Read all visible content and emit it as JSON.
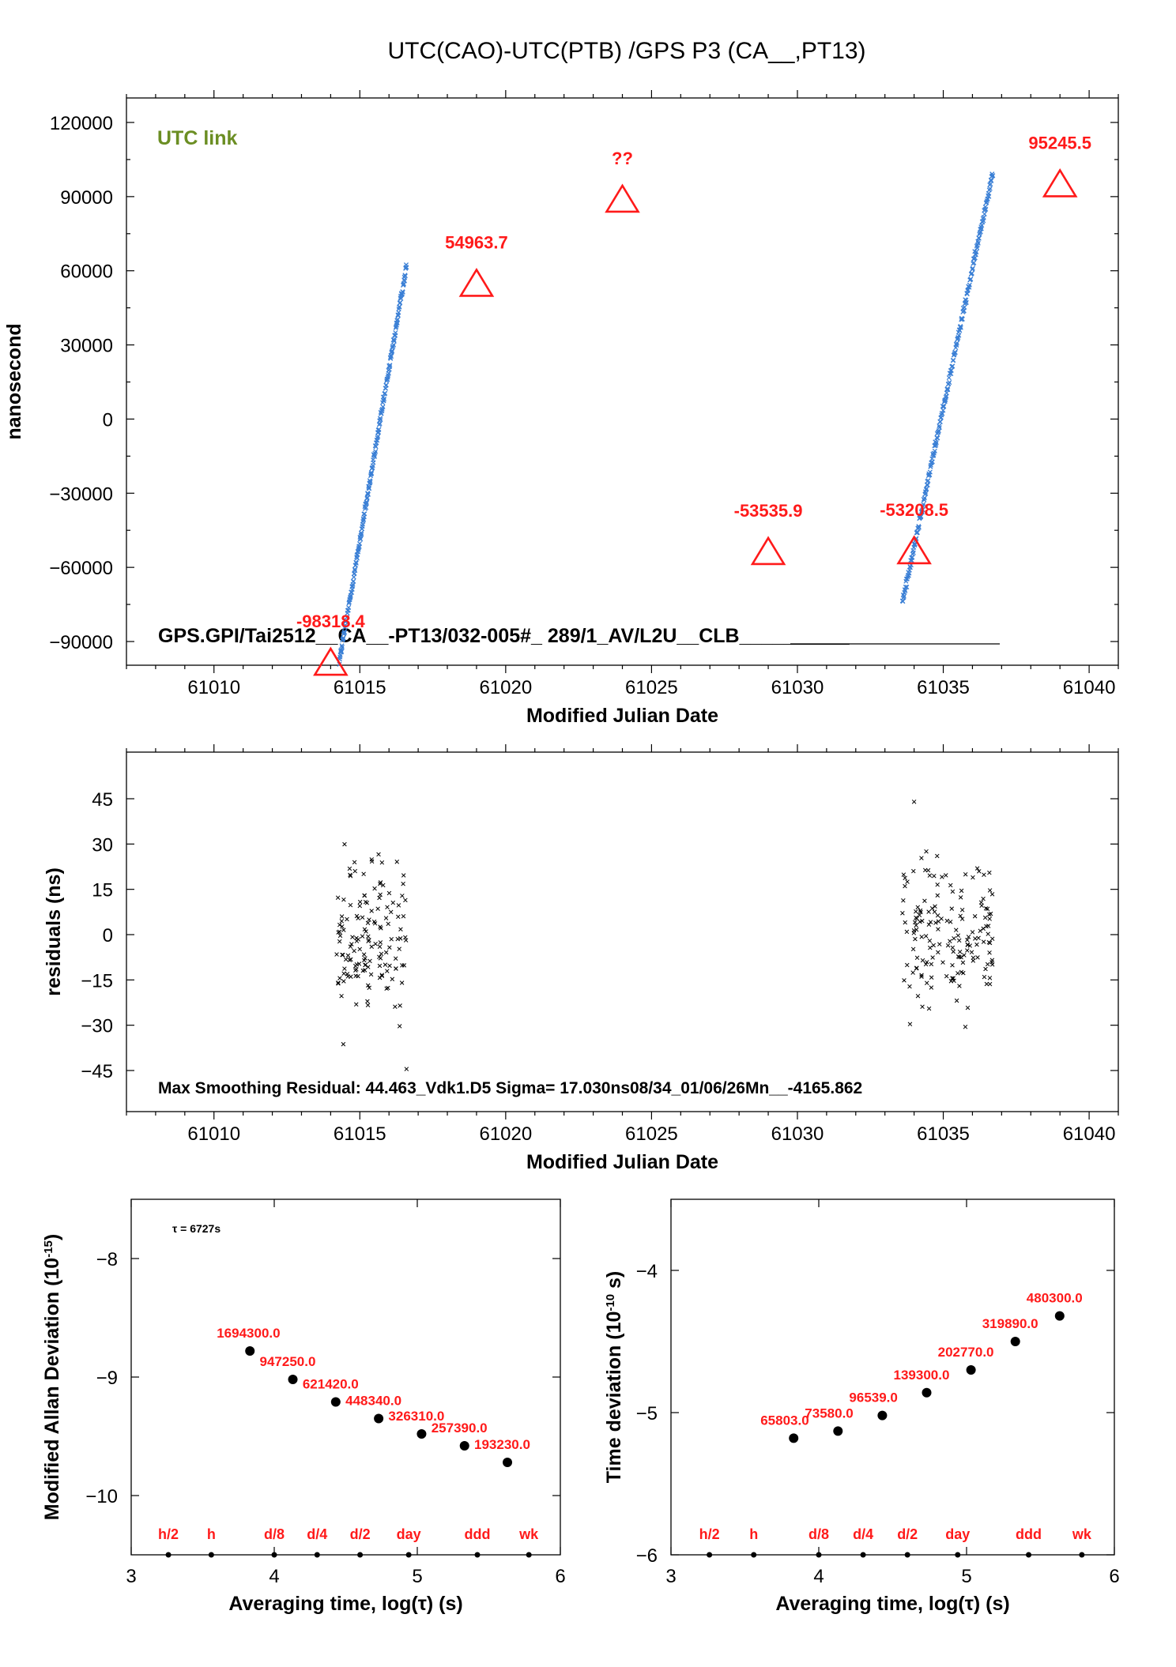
{
  "page_title": "UTC(CAO)-UTC(PTB)  /GPS  P3  (CA__,PT13)",
  "colors": {
    "accent_red": "#ff1a1a",
    "series_blue": "#3a7fd5",
    "link_green": "#6b8e23",
    "axis": "#000000"
  },
  "chart_data": [
    {
      "type": "scatter",
      "title": "UTC(CAO)-UTC(PTB)  /GPS  P3  (CA__,PT13)",
      "xlabel": "Modified Julian Date",
      "ylabel": "nanosecond",
      "xlim": [
        61007,
        61041
      ],
      "ylim": [
        -100000,
        130000
      ],
      "xticks": [
        61010,
        61015,
        61020,
        61025,
        61030,
        61035,
        61040
      ],
      "yticks": [
        -90000,
        -60000,
        -30000,
        0,
        30000,
        60000,
        90000,
        120000
      ],
      "annotation_link": "UTC link",
      "footer_text": "GPS.GPI/Tai2512__CA__-PT13/032-005#_  289/1_AV/L2U__CLB__________",
      "series": [
        {
          "marker": "x",
          "segments": [
            {
              "x_start": 61014.3,
              "x_end": 61016.6,
              "y_start": -98000,
              "y_end": 62000,
              "n": 220
            },
            {
              "x_start": 61033.6,
              "x_end": 61036.7,
              "y_start": -74000,
              "y_end": 100000,
              "n": 230
            }
          ]
        }
      ],
      "triangles": [
        {
          "x": 61014.0,
          "y": -98318.4,
          "label": "-98318.4"
        },
        {
          "x": 61019.0,
          "y": 54963.7,
          "label": "54963.7"
        },
        {
          "x": 61024.0,
          "y": 89000,
          "label": "??"
        },
        {
          "x": 61029.0,
          "y": -53535.9,
          "label": "-53535.9"
        },
        {
          "x": 61034.0,
          "y": -53208.5,
          "label": "-53208.5"
        },
        {
          "x": 61039.0,
          "y": 95245.5,
          "label": "95245.5"
        }
      ]
    },
    {
      "type": "scatter",
      "xlabel": "Modified Julian Date",
      "ylabel": "residuals (ns)",
      "xlim": [
        61007,
        61041
      ],
      "ylim": [
        -58,
        58
      ],
      "xticks": [
        61010,
        61015,
        61020,
        61025,
        61030,
        61035,
        61040
      ],
      "yticks": [
        -45,
        -30,
        -15,
        0,
        15,
        30,
        45
      ],
      "footer_text": "Max Smoothing Residual: 44.463_Vdk1.D5  Sigma= 17.030ns08/34_01/06/26Mn__-4165.862",
      "clusters": [
        {
          "x_start": 61014.2,
          "x_end": 61016.6,
          "n": 150,
          "y_spread": 17
        },
        {
          "x_start": 61033.6,
          "x_end": 61036.7,
          "n": 165,
          "y_spread": 16
        }
      ],
      "extremes": [
        {
          "x": 61016.6,
          "y": -44.5
        },
        {
          "x": 61034.0,
          "y": 44.0
        }
      ]
    },
    {
      "type": "scatter",
      "xlabel": "Averaging time, log(τ) (s)",
      "ylabel": "Modified Allan Deviation (10⁻¹⁵)",
      "xlim": [
        3,
        6
      ],
      "ylim": [
        -10.5,
        -7.5
      ],
      "xticks": [
        3,
        4,
        5,
        6
      ],
      "yticks": [
        -8,
        -9,
        -10
      ],
      "tau_note": "τ = 6727s",
      "points": [
        {
          "x": 3.83,
          "y": -8.78,
          "label": "1694300.0"
        },
        {
          "x": 4.13,
          "y": -9.02,
          "label": "947250.0"
        },
        {
          "x": 4.43,
          "y": -9.21,
          "label": "621420.0"
        },
        {
          "x": 4.73,
          "y": -9.35,
          "label": "448340.0"
        },
        {
          "x": 5.03,
          "y": -9.48,
          "label": "326310.0"
        },
        {
          "x": 5.33,
          "y": -9.58,
          "label": "257390.0"
        },
        {
          "x": 5.63,
          "y": -9.72,
          "label": "193230.0"
        }
      ],
      "markers": [
        {
          "x": 3.26,
          "label": "h/2"
        },
        {
          "x": 3.56,
          "label": "h"
        },
        {
          "x": 4.0,
          "label": "d/8"
        },
        {
          "x": 4.3,
          "label": "d/4"
        },
        {
          "x": 4.6,
          "label": "d/2"
        },
        {
          "x": 4.94,
          "label": "day"
        },
        {
          "x": 5.42,
          "label": "ddd"
        },
        {
          "x": 5.78,
          "label": "wk"
        }
      ]
    },
    {
      "type": "scatter",
      "xlabel": "Averaging time, log(τ) (s)",
      "ylabel": "Time deviation (10⁻¹⁰ s)",
      "xlim": [
        3,
        6
      ],
      "ylim": [
        -6,
        -3.5
      ],
      "xticks": [
        3,
        4,
        5,
        6
      ],
      "yticks": [
        -4,
        -5,
        -6
      ],
      "points": [
        {
          "x": 3.83,
          "y": -5.18,
          "label": "65803.0"
        },
        {
          "x": 4.13,
          "y": -5.13,
          "label": "73580.0"
        },
        {
          "x": 4.43,
          "y": -5.02,
          "label": "96539.0"
        },
        {
          "x": 4.73,
          "y": -4.86,
          "label": "139300.0"
        },
        {
          "x": 5.03,
          "y": -4.7,
          "label": "202770.0"
        },
        {
          "x": 5.33,
          "y": -4.5,
          "label": "319890.0"
        },
        {
          "x": 5.63,
          "y": -4.32,
          "label": "480300.0"
        }
      ],
      "markers": [
        {
          "x": 3.26,
          "label": "h/2"
        },
        {
          "x": 3.56,
          "label": "h"
        },
        {
          "x": 4.0,
          "label": "d/8"
        },
        {
          "x": 4.3,
          "label": "d/4"
        },
        {
          "x": 4.6,
          "label": "d/2"
        },
        {
          "x": 4.94,
          "label": "day"
        },
        {
          "x": 5.42,
          "label": "ddd"
        },
        {
          "x": 5.78,
          "label": "wk"
        }
      ]
    }
  ]
}
